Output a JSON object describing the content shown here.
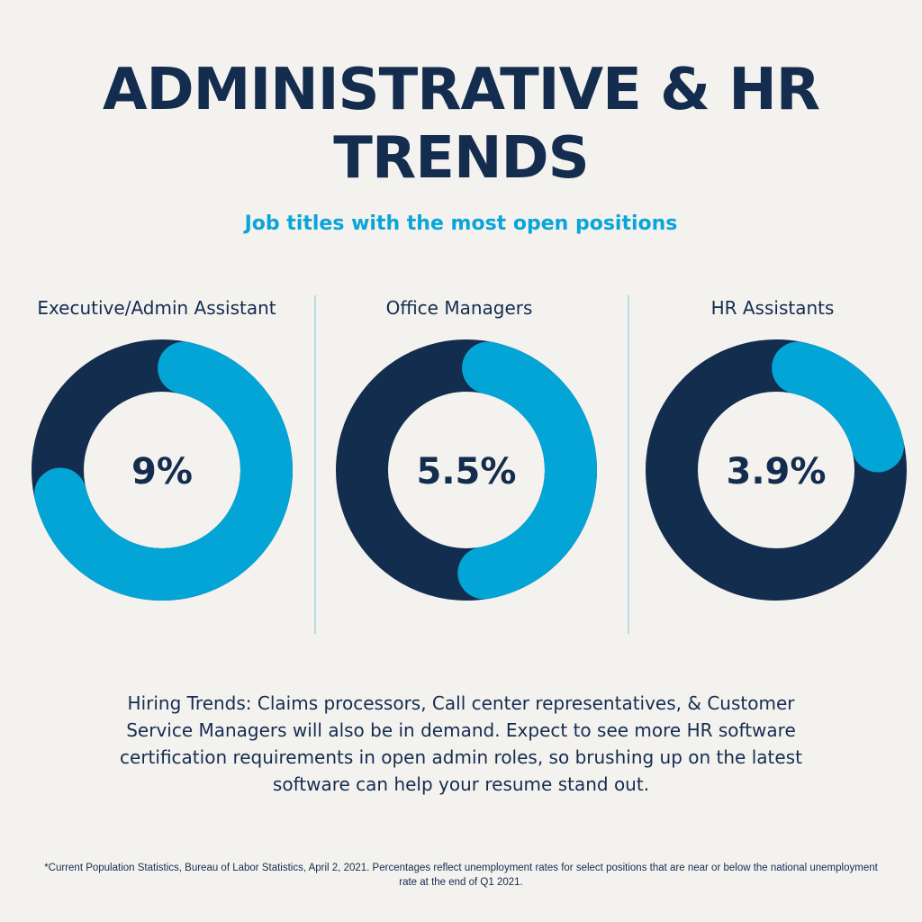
{
  "title": "ADMINISTRATIVE & HR TRENDS",
  "subtitle": "Job titles with the most open positions",
  "colors": {
    "dark": "#132d4f",
    "accent": "#02a5d6",
    "background": "#f4f2ef"
  },
  "chart_data": {
    "type": "pie",
    "variant": "donut",
    "title": "Job titles with the most open positions",
    "items": [
      {
        "label": "Executive/Admin Assistant",
        "value_label": "9%",
        "value": 9,
        "arc_fraction": 0.68
      },
      {
        "label": "Office Managers",
        "value_label": "5.5%",
        "value": 5.5,
        "arc_fraction": 0.44
      },
      {
        "label": "HR Assistants",
        "value_label": "3.9%",
        "value": 3.9,
        "arc_fraction": 0.18
      }
    ]
  },
  "body_text": "Hiring Trends: Claims processors, Call center representatives, & Customer Service Managers will also be in demand. Expect to see more HR software certification requirements in open admin roles, so brushing up on the latest software can help your resume stand out.",
  "footnote": "*Current Population Statistics, Bureau of Labor Statistics, April 2, 2021. Percentages reflect unemployment rates for select positions that are near or below the national unemployment rate at the end of Q1 2021."
}
